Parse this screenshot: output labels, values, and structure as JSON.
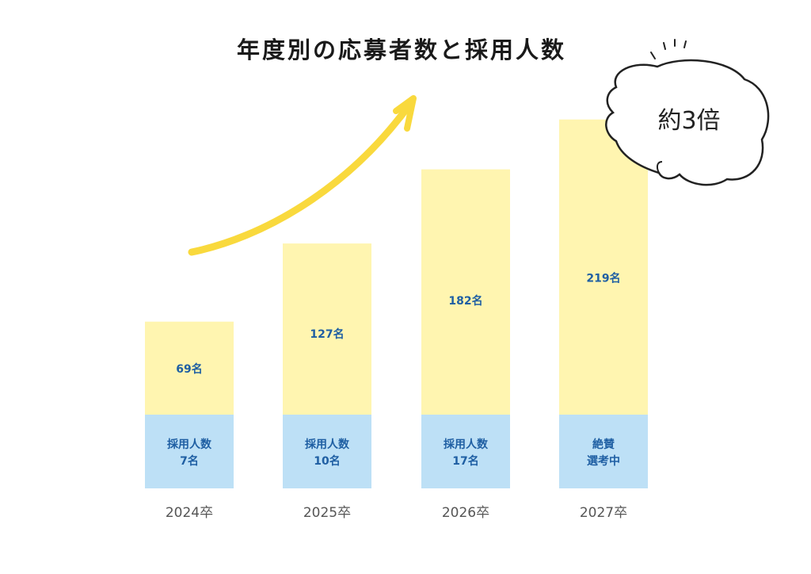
{
  "title": "年度別の応募者数と採用人数",
  "colors": {
    "applicants": "#fff5b0",
    "hires": "#bde0f6",
    "label": "#1f5fa3",
    "arrow": "#f9d93d"
  },
  "chart_data": {
    "type": "bar",
    "stacked": true,
    "categories": [
      "2024卒",
      "2025卒",
      "2026卒",
      "2027卒"
    ],
    "series": [
      {
        "key": "hires",
        "values": [
          7,
          10,
          17,
          null
        ]
      },
      {
        "key": "applicants",
        "values": [
          69,
          127,
          182,
          219
        ]
      }
    ],
    "applicant_labels": [
      "69名",
      "127名",
      "182名",
      "219名"
    ],
    "hire_labels": [
      [
        "採用人数",
        "7名"
      ],
      [
        "採用人数",
        "10名"
      ],
      [
        "採用人数",
        "17名"
      ],
      [
        "絶賛",
        "選考中"
      ]
    ],
    "annotation": "約3倍",
    "grid": false,
    "legend": "none"
  }
}
